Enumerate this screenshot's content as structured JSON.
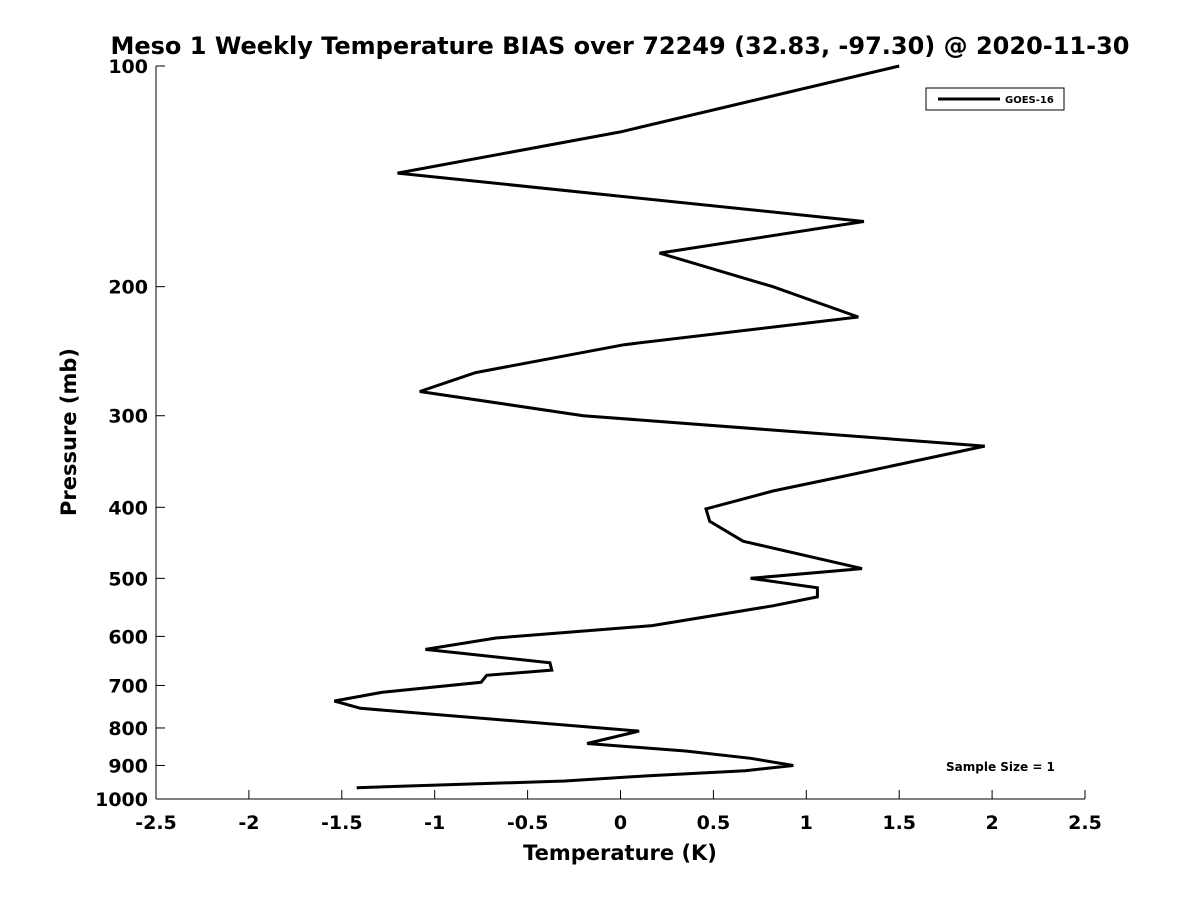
{
  "chart_data": {
    "type": "line",
    "title": "Meso 1 Weekly Temperature BIAS over 72249 (32.83, -97.30) @ 2020-11-30",
    "xlabel": "Temperature (K)",
    "ylabel": "Pressure (mb)",
    "xlim": [
      -2.5,
      2.5
    ],
    "ylim": [
      100,
      1000
    ],
    "y_scale": "log",
    "y_reversed": true,
    "grid": false,
    "legend_position": "top-right",
    "x_ticks": [
      -2.5,
      -2,
      -1.5,
      -1,
      -0.5,
      0,
      0.5,
      1,
      1.5,
      2,
      2.5
    ],
    "x_tick_labels": [
      "-2.5",
      "-2",
      "-1.5",
      "-1",
      "-0.5",
      "0",
      "0.5",
      "1",
      "1.5",
      "2",
      "2.5"
    ],
    "y_ticks": [
      100,
      200,
      300,
      400,
      500,
      600,
      700,
      800,
      900,
      1000
    ],
    "y_tick_labels": [
      "100",
      "200",
      "300",
      "400",
      "500",
      "600",
      "700",
      "800",
      "900",
      "1000"
    ],
    "annotation": "Sample Size = 1",
    "series": [
      {
        "name": "GOES-16",
        "color": "#000000",
        "points": [
          {
            "x": 1.5,
            "p": 100
          },
          {
            "x": 0.0,
            "p": 123
          },
          {
            "x": -1.2,
            "p": 140
          },
          {
            "x": 1.31,
            "p": 163
          },
          {
            "x": 0.21,
            "p": 180
          },
          {
            "x": 0.82,
            "p": 200
          },
          {
            "x": 1.28,
            "p": 220
          },
          {
            "x": 0.02,
            "p": 240
          },
          {
            "x": -0.78,
            "p": 262
          },
          {
            "x": -1.08,
            "p": 278
          },
          {
            "x": -0.2,
            "p": 300
          },
          {
            "x": 1.96,
            "p": 330
          },
          {
            "x": 1.22,
            "p": 362
          },
          {
            "x": 0.82,
            "p": 380
          },
          {
            "x": 0.46,
            "p": 402
          },
          {
            "x": 0.48,
            "p": 418
          },
          {
            "x": 0.66,
            "p": 445
          },
          {
            "x": 1.3,
            "p": 485
          },
          {
            "x": 0.7,
            "p": 500
          },
          {
            "x": 1.06,
            "p": 515
          },
          {
            "x": 1.06,
            "p": 530
          },
          {
            "x": 0.82,
            "p": 545
          },
          {
            "x": 0.17,
            "p": 580
          },
          {
            "x": -0.67,
            "p": 603
          },
          {
            "x": -1.05,
            "p": 625
          },
          {
            "x": -0.38,
            "p": 652
          },
          {
            "x": -0.37,
            "p": 667
          },
          {
            "x": -0.72,
            "p": 678
          },
          {
            "x": -0.75,
            "p": 693
          },
          {
            "x": -1.28,
            "p": 715
          },
          {
            "x": -1.54,
            "p": 735
          },
          {
            "x": -1.4,
            "p": 752
          },
          {
            "x": 0.1,
            "p": 808
          },
          {
            "x": -0.18,
            "p": 840
          },
          {
            "x": 0.35,
            "p": 860
          },
          {
            "x": 0.7,
            "p": 880
          },
          {
            "x": 0.93,
            "p": 900
          },
          {
            "x": 0.67,
            "p": 915
          },
          {
            "x": 0.14,
            "p": 930
          },
          {
            "x": -0.3,
            "p": 945
          },
          {
            "x": -1.42,
            "p": 965
          }
        ]
      }
    ]
  }
}
